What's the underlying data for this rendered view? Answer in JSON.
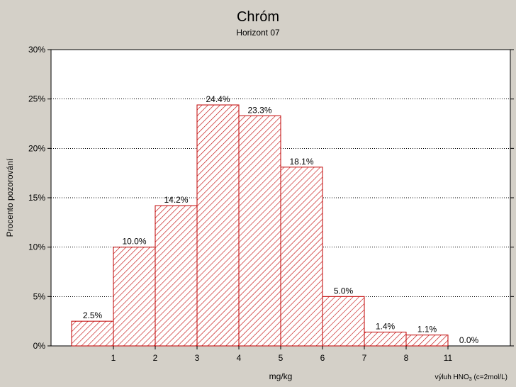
{
  "chart_data": {
    "type": "bar",
    "title": "Chróm",
    "subtitle": "Horizont 07",
    "xlabel": "mg/kg",
    "ylabel": "Procento pozorování",
    "note": {
      "prefix": "výluh HNO",
      "subscript": "3",
      "suffix": " (c=2mol/L)"
    },
    "x_tick_labels": [
      "1",
      "2",
      "3",
      "4",
      "5",
      "6",
      "7",
      "8",
      "11"
    ],
    "bins": [
      {
        "value": 2.5,
        "label": "2.5%"
      },
      {
        "value": 10.0,
        "label": "10.0%"
      },
      {
        "value": 14.2,
        "label": "14.2%"
      },
      {
        "value": 24.4,
        "label": "24.4%"
      },
      {
        "value": 23.3,
        "label": "23.3%"
      },
      {
        "value": 18.1,
        "label": "18.1%"
      },
      {
        "value": 5.0,
        "label": "5.0%"
      },
      {
        "value": 1.4,
        "label": "1.4%"
      },
      {
        "value": 1.1,
        "label": "1.1%"
      },
      {
        "value": 0.0,
        "label": "0.0%"
      }
    ],
    "y_ticks": [
      {
        "value": 0,
        "label": "0%"
      },
      {
        "value": 5,
        "label": "5%"
      },
      {
        "value": 10,
        "label": "10%"
      },
      {
        "value": 15,
        "label": "15%"
      },
      {
        "value": 20,
        "label": "20%"
      },
      {
        "value": 25,
        "label": "25%"
      },
      {
        "value": 30,
        "label": "30%"
      }
    ],
    "ylim": [
      0,
      30
    ],
    "grid": true,
    "bar_fill": "hatched",
    "bar_color": "#c00000",
    "plot_background": "#ffffff",
    "page_background": "#d4d0c8"
  }
}
